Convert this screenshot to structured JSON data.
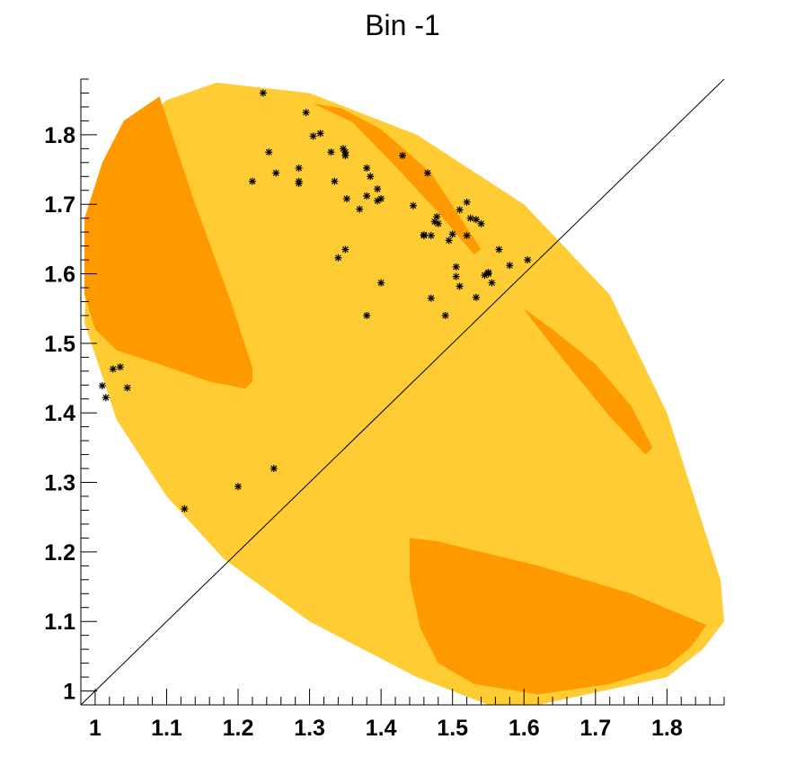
{
  "chart_data": {
    "type": "scatter",
    "title": "Bin -1",
    "xlabel": "",
    "ylabel": "",
    "xlim": [
      0.98,
      1.88
    ],
    "ylim": [
      0.98,
      1.88
    ],
    "grid": false,
    "xticks": [
      "1",
      "1.1",
      "1.2",
      "1.3",
      "1.4",
      "1.5",
      "1.6",
      "1.7",
      "1.8"
    ],
    "yticks": [
      "1",
      "1.1",
      "1.2",
      "1.3",
      "1.4",
      "1.5",
      "1.6",
      "1.7",
      "1.8"
    ],
    "diagonal": {
      "from": [
        0.98,
        0.98
      ],
      "to": [
        1.88,
        1.88
      ]
    },
    "region_colors": {
      "outer": "#FFCC33",
      "inner": "#FF9900",
      "line": "#000000",
      "marker": "#000000"
    },
    "region_outer": [
      [
        1.17,
        1.875
      ],
      [
        1.3,
        1.86
      ],
      [
        1.45,
        1.8
      ],
      [
        1.6,
        1.7
      ],
      [
        1.72,
        1.57
      ],
      [
        1.8,
        1.4
      ],
      [
        1.875,
        1.16
      ],
      [
        1.88,
        1.1
      ],
      [
        1.85,
        1.06
      ],
      [
        1.8,
        1.02
      ],
      [
        1.62,
        0.98
      ],
      [
        1.55,
        0.98
      ],
      [
        1.45,
        1.02
      ],
      [
        1.3,
        1.1
      ],
      [
        1.18,
        1.19
      ],
      [
        1.1,
        1.28
      ],
      [
        1.03,
        1.39
      ],
      [
        0.985,
        1.53
      ],
      [
        0.99,
        1.64
      ],
      [
        1.02,
        1.74
      ],
      [
        1.06,
        1.81
      ],
      [
        1.1,
        1.85
      ]
    ],
    "region_inner": [
      [
        [
          1.09,
          1.855
        ],
        [
          1.04,
          1.82
        ],
        [
          1.01,
          1.76
        ],
        [
          0.985,
          1.68
        ],
        [
          0.985,
          1.57
        ],
        [
          1.0,
          1.52
        ],
        [
          1.03,
          1.49
        ],
        [
          1.09,
          1.47
        ],
        [
          1.16,
          1.445
        ],
        [
          1.21,
          1.435
        ],
        [
          1.22,
          1.445
        ],
        [
          1.22,
          1.465
        ],
        [
          1.19,
          1.56
        ],
        [
          1.14,
          1.7
        ]
      ],
      [
        [
          1.305,
          1.845
        ],
        [
          1.345,
          1.838
        ],
        [
          1.4,
          1.808
        ],
        [
          1.47,
          1.745
        ],
        [
          1.54,
          1.635
        ],
        [
          1.53,
          1.628
        ],
        [
          1.48,
          1.688
        ],
        [
          1.42,
          1.755
        ],
        [
          1.36,
          1.818
        ]
      ],
      [
        [
          1.6,
          1.55
        ],
        [
          1.64,
          1.52
        ],
        [
          1.7,
          1.47
        ],
        [
          1.75,
          1.41
        ],
        [
          1.78,
          1.35
        ],
        [
          1.77,
          1.34
        ],
        [
          1.72,
          1.395
        ],
        [
          1.66,
          1.47
        ],
        [
          1.61,
          1.535
        ]
      ],
      [
        [
          1.44,
          1.22
        ],
        [
          1.48,
          1.215
        ],
        [
          1.62,
          1.18
        ],
        [
          1.75,
          1.14
        ],
        [
          1.855,
          1.095
        ],
        [
          1.835,
          1.065
        ],
        [
          1.8,
          1.035
        ],
        [
          1.72,
          1.01
        ],
        [
          1.62,
          0.995
        ],
        [
          1.53,
          1.01
        ],
        [
          1.48,
          1.04
        ],
        [
          1.455,
          1.09
        ],
        [
          1.44,
          1.16
        ]
      ]
    ],
    "series": [
      {
        "x": [
          1.235,
          1.295,
          1.315,
          1.305,
          1.243,
          1.22,
          1.253,
          1.285,
          1.285,
          1.285,
          1.33,
          1.335,
          1.347,
          1.35,
          1.35,
          1.352,
          1.37,
          1.38,
          1.38,
          1.385,
          1.395,
          1.395,
          1.4,
          1.43,
          1.445,
          1.465,
          1.46,
          1.46,
          1.47,
          1.475,
          1.478,
          1.48,
          1.495,
          1.52,
          1.51,
          1.525,
          1.533,
          1.54,
          1.52,
          1.5,
          1.505,
          1.505,
          1.51,
          1.55,
          1.55,
          1.545,
          1.555,
          1.565,
          1.58,
          1.605,
          1.35,
          1.34,
          1.4,
          1.38,
          1.47,
          1.49,
          1.533,
          1.035,
          1.025,
          1.01,
          1.015,
          1.045,
          1.2,
          1.25,
          1.125
        ],
        "y": [
          1.86,
          1.832,
          1.802,
          1.798,
          1.775,
          1.733,
          1.745,
          1.752,
          1.733,
          1.73,
          1.775,
          1.733,
          1.78,
          1.775,
          1.77,
          1.708,
          1.693,
          1.712,
          1.752,
          1.74,
          1.722,
          1.705,
          1.708,
          1.77,
          1.698,
          1.745,
          1.655,
          1.656,
          1.655,
          1.675,
          1.682,
          1.672,
          1.648,
          1.703,
          1.692,
          1.68,
          1.678,
          1.672,
          1.655,
          1.657,
          1.61,
          1.596,
          1.582,
          1.6,
          1.602,
          1.598,
          1.587,
          1.635,
          1.612,
          1.62,
          1.635,
          1.623,
          1.587,
          1.54,
          1.565,
          1.54,
          1.566,
          1.466,
          1.463,
          1.439,
          1.422,
          1.436,
          1.294,
          1.32,
          1.262
        ]
      }
    ]
  }
}
